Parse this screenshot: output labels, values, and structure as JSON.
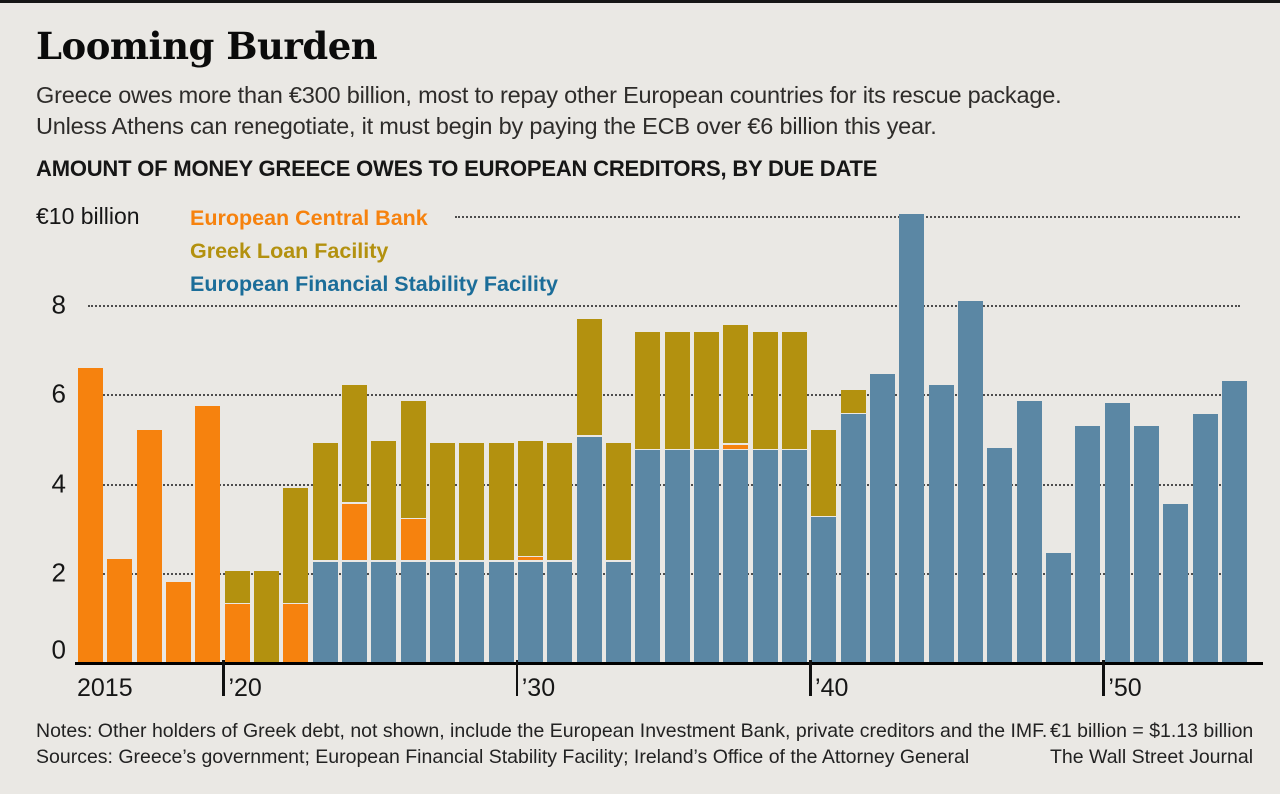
{
  "header": {
    "title": "Looming Burden",
    "subtitle_line1": "Greece owes more than €300 billion, most to repay other European countries for its rescue package.",
    "subtitle_line2": "Unless Athens can renegotiate, it must begin by paying the ECB over €6 billion this year.",
    "section_label": "AMOUNT OF MONEY GREECE OWES TO EUROPEAN CREDITORS, BY DUE DATE"
  },
  "axis": {
    "unit_label": "€10 billion",
    "y_tick_values": [
      0,
      2,
      4,
      6,
      8
    ],
    "x_tick_years": [
      2020,
      2030,
      2040,
      2050
    ],
    "x_tick_labels": [
      "’20",
      "’30",
      "’40",
      "’50"
    ],
    "x_first_label": "2015"
  },
  "legend": [
    {
      "label": "European Central Bank",
      "color": "#f6820e"
    },
    {
      "label": "Greek Loan Facility",
      "color": "#b3910f"
    },
    {
      "label": "European Financial Stability Facility",
      "color": "#1b6d99"
    }
  ],
  "footer": {
    "notes": "Notes: Other holders of Greek debt, not shown, include the European Investment Bank, private creditors and the IMF.",
    "sources": "Sources: Greece’s government; European Financial Stability Facility; Ireland’s Office of the Attorney General",
    "conversion": "€1 billion = $1.13 billion",
    "credit": "The Wall Street Journal"
  },
  "chart_data": {
    "type": "bar",
    "stacked": true,
    "title": "AMOUNT OF MONEY GREECE OWES TO EUROPEAN CREDITORS, BY DUE DATE",
    "ylabel": "€ billion",
    "ylim": [
      0,
      10.5
    ],
    "grid": "dotted horizontal at 2,4,6,8,10",
    "legend_position": "top-left inside plot",
    "categories": [
      2015,
      2016,
      2017,
      2018,
      2019,
      2020,
      2021,
      2022,
      2023,
      2024,
      2025,
      2026,
      2027,
      2028,
      2029,
      2030,
      2031,
      2032,
      2033,
      2034,
      2035,
      2036,
      2037,
      2038,
      2039,
      2040,
      2041,
      2042,
      2043,
      2044,
      2045,
      2046,
      2047,
      2048,
      2049,
      2050,
      2051,
      2052,
      2053,
      2054
    ],
    "stack_order_bottom_to_top": [
      "European Financial Stability Facility",
      "European Central Bank",
      "Greek Loan Facility"
    ],
    "series": [
      {
        "name": "European Financial Stability Facility",
        "color": "#5b87a4",
        "values": [
          0,
          0,
          0,
          0,
          0,
          0,
          0,
          0,
          2.25,
          2.25,
          2.25,
          2.25,
          2.25,
          2.25,
          2.25,
          2.25,
          2.25,
          5.05,
          2.25,
          4.75,
          4.75,
          4.75,
          4.75,
          4.75,
          4.75,
          3.25,
          5.55,
          6.45,
          10.05,
          6.2,
          8.1,
          4.8,
          5.85,
          2.45,
          5.3,
          5.8,
          5.3,
          3.55,
          5.55,
          6.3
        ]
      },
      {
        "name": "European Central Bank",
        "color": "#f6820e",
        "values": [
          6.6,
          2.3,
          5.2,
          1.8,
          5.75,
          1.3,
          0,
          1.3,
          0,
          1.3,
          0,
          0.95,
          0,
          0,
          0,
          0.1,
          0,
          0,
          0,
          0,
          0,
          0,
          0.12,
          0,
          0,
          0,
          0,
          0,
          0,
          0,
          0,
          0,
          0,
          0,
          0,
          0,
          0,
          0,
          0,
          0
        ]
      },
      {
        "name": "Greek Loan Facility",
        "color": "#b3910f",
        "values": [
          0,
          0,
          0,
          0,
          0,
          0.75,
          2.05,
          2.6,
          2.65,
          2.65,
          2.7,
          2.65,
          2.65,
          2.65,
          2.65,
          2.6,
          2.65,
          2.65,
          2.65,
          2.65,
          2.65,
          2.65,
          2.68,
          2.65,
          2.65,
          1.95,
          0.55,
          0,
          0,
          0,
          0,
          0,
          0,
          0,
          0,
          0,
          0,
          0,
          0,
          0
        ]
      }
    ]
  }
}
